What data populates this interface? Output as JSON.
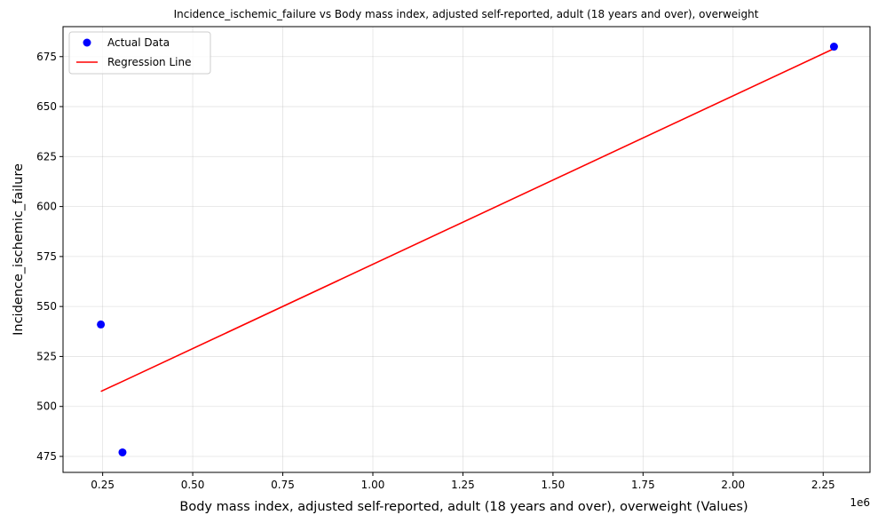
{
  "chart_data": {
    "type": "scatter",
    "title": "Incidence_ischemic_failure vs Body mass index, adjusted self-reported, adult (18 years and over), overweight",
    "xlabel": "Body mass index, adjusted self-reported, adult (18 years and over), overweight (Values)",
    "ylabel": "Incidence_ischemic_failure",
    "x_offset_label": "1e6",
    "xlim": [
      0.14,
      2.38
    ],
    "ylim": [
      467,
      690
    ],
    "x_ticks": [
      0.25,
      0.5,
      0.75,
      1.0,
      1.25,
      1.5,
      1.75,
      2.0,
      2.25
    ],
    "x_tick_labels": [
      "0.25",
      "0.50",
      "0.75",
      "1.00",
      "1.25",
      "1.50",
      "1.75",
      "2.00",
      "2.25"
    ],
    "y_ticks": [
      475,
      500,
      525,
      550,
      575,
      600,
      625,
      650,
      675
    ],
    "y_tick_labels": [
      "475",
      "500",
      "525",
      "550",
      "575",
      "600",
      "625",
      "650",
      "675"
    ],
    "grid": true,
    "legend_position": "top-left",
    "series": [
      {
        "name": "Actual Data",
        "kind": "scatter",
        "color": "#0000ff",
        "x": [
          0.245,
          0.305,
          2.28
        ],
        "y": [
          541,
          477,
          680
        ]
      },
      {
        "name": "Regression Line",
        "kind": "line",
        "color": "#ff0000",
        "x": [
          0.245,
          0.305,
          2.28
        ],
        "y": [
          507.5,
          512.5,
          679
        ]
      }
    ]
  }
}
